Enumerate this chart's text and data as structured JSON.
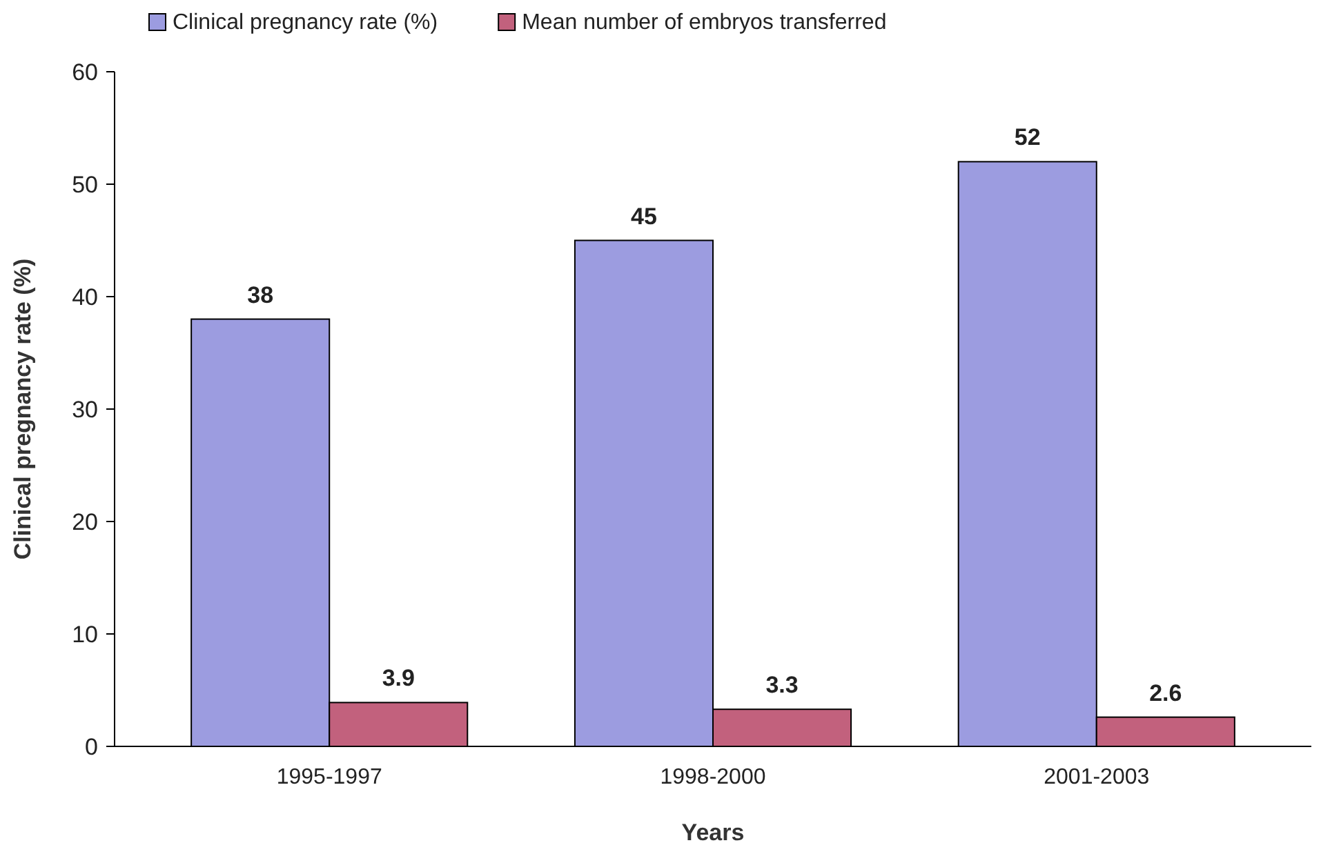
{
  "chart_data": {
    "type": "bar",
    "xlabel": "Years",
    "ylabel": "Clinical pregnancy rate (%)",
    "categories": [
      "1995-1997",
      "1998-2000",
      "2001-2003"
    ],
    "series": [
      {
        "name": "Clinical pregnancy rate (%)",
        "color": "#9c9ce0",
        "values": [
          38,
          45,
          52
        ]
      },
      {
        "name": "Mean number of embryos transferred",
        "color": "#c2617d",
        "values": [
          3.9,
          3.3,
          2.6
        ]
      }
    ],
    "ylim": [
      0,
      60
    ],
    "yticks": [
      0,
      10,
      20,
      30,
      40,
      50,
      60
    ],
    "grid": false,
    "legend": "top left",
    "data_labels": true
  }
}
